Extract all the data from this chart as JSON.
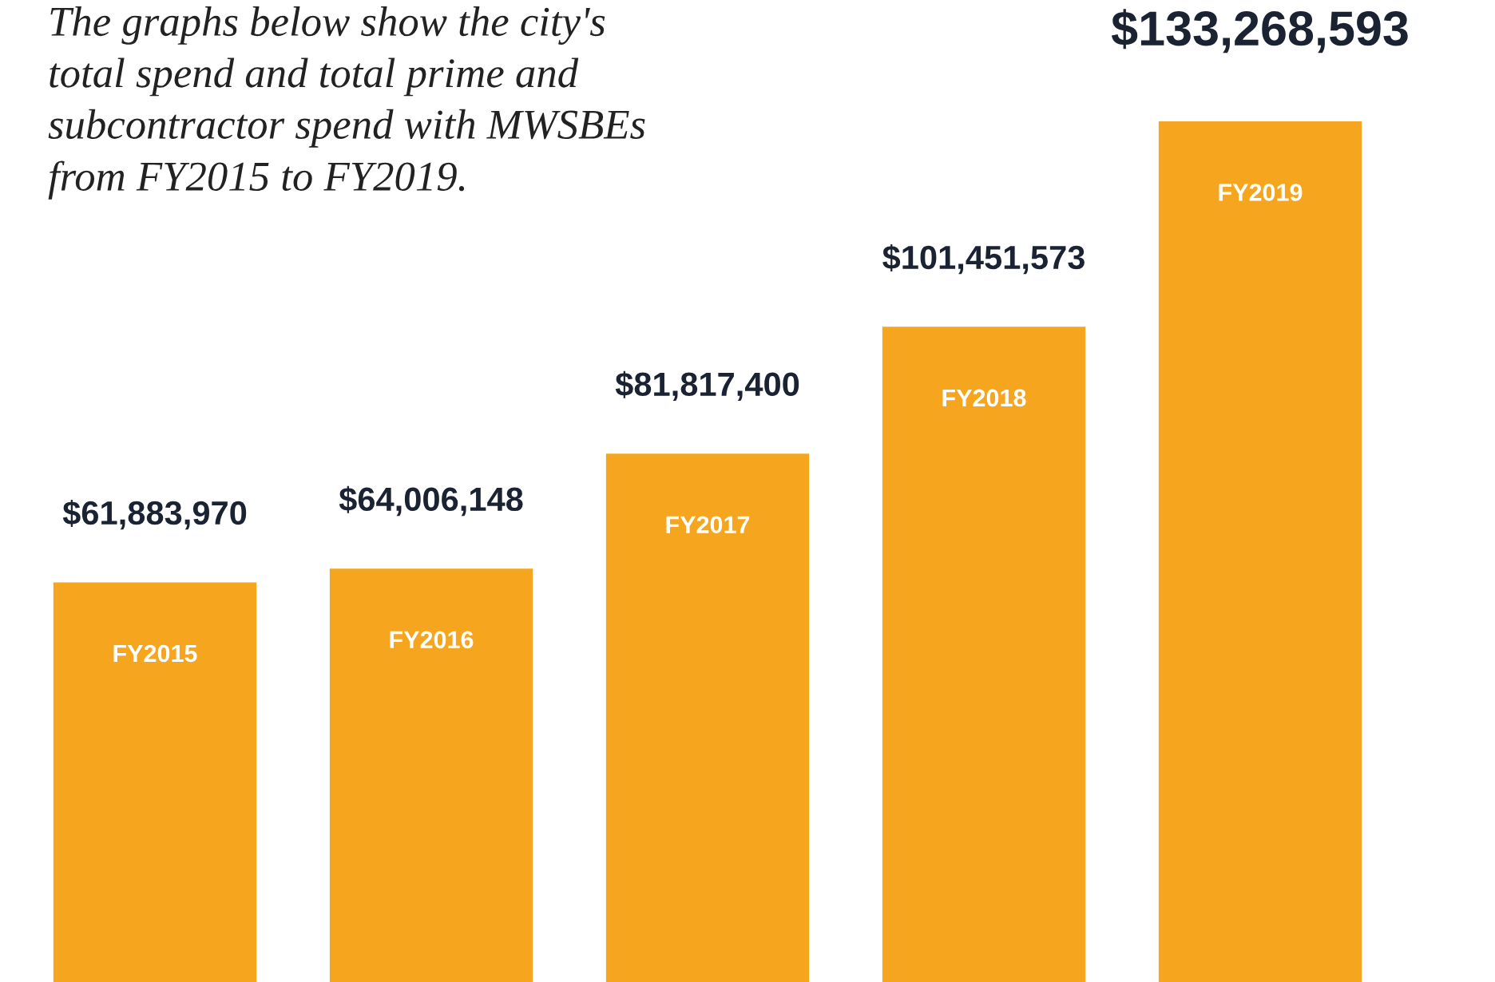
{
  "chart_data": {
    "type": "bar",
    "title": "The graphs below show the city's\ntotal spend and total prime and\nsubcontractor spend with MWSBEs\nfrom FY2015 to FY2019.",
    "categories": [
      "FY2015",
      "FY2016",
      "FY2017",
      "FY2018",
      "FY2019"
    ],
    "values": [
      61883970,
      64006148,
      81817400,
      101451573,
      133268593
    ],
    "value_labels": [
      "$61,883,970",
      "$64,006,148",
      "$81,817,400",
      "$101,451,573",
      "$133,268,593"
    ],
    "color": "#f6a61e"
  }
}
